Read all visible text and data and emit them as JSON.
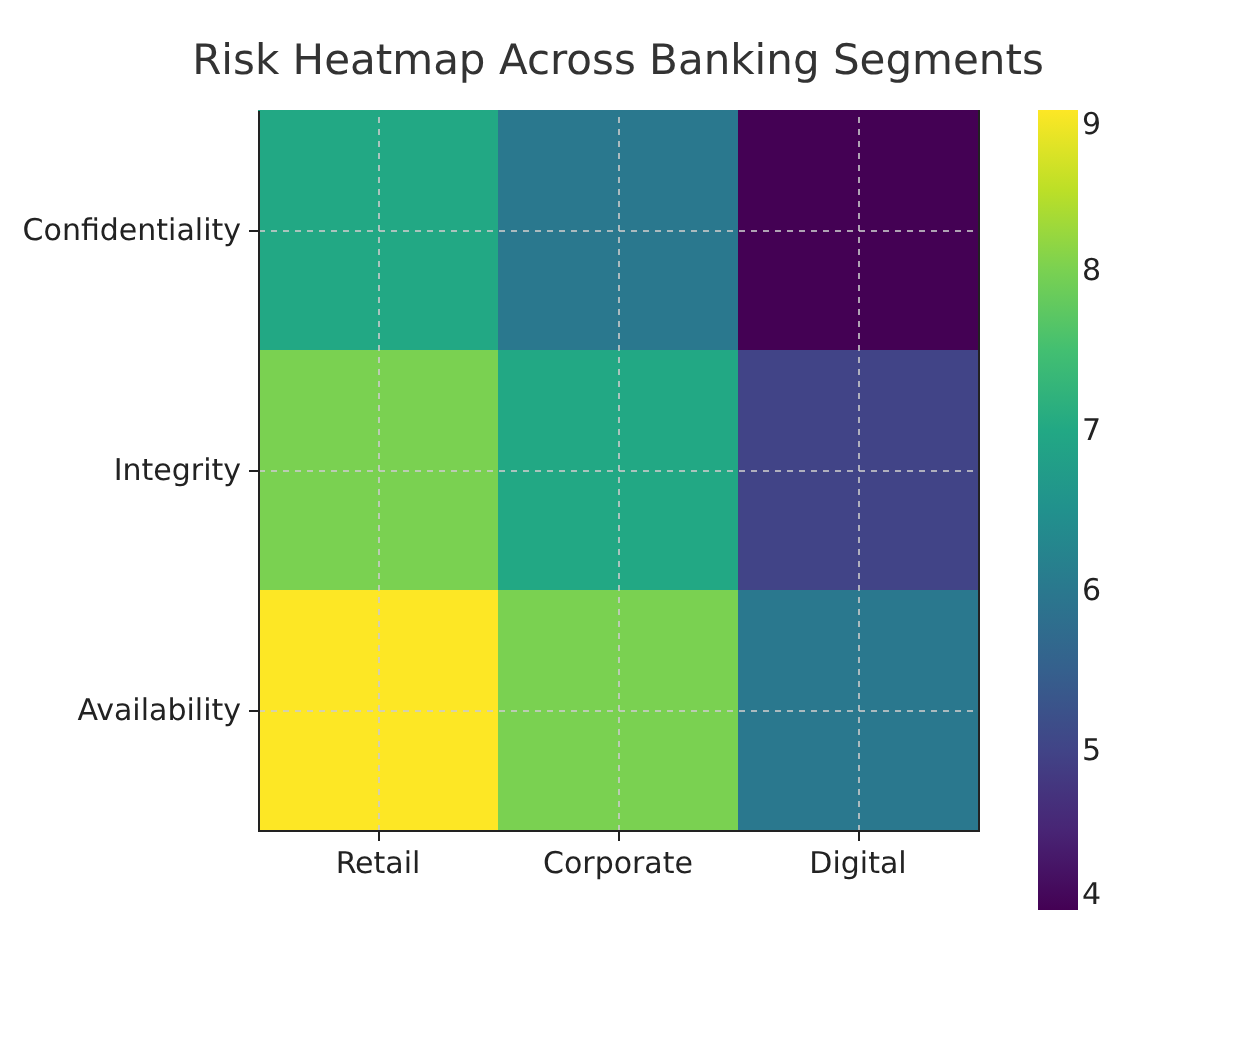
{
  "chart_data": {
    "type": "heatmap",
    "title": "Risk Heatmap Across Banking Segments",
    "categories": [
      "Retail",
      "Corporate",
      "Digital"
    ],
    "y_categories": [
      "Confidentiality",
      "Integrity",
      "Availability"
    ],
    "cells": [
      [
        7,
        6,
        4
      ],
      [
        8,
        7,
        5
      ],
      [
        9,
        8,
        6
      ]
    ],
    "clim": [
      4,
      9
    ],
    "cticks": [
      4,
      5,
      6,
      7,
      8,
      9
    ],
    "grid": true
  }
}
